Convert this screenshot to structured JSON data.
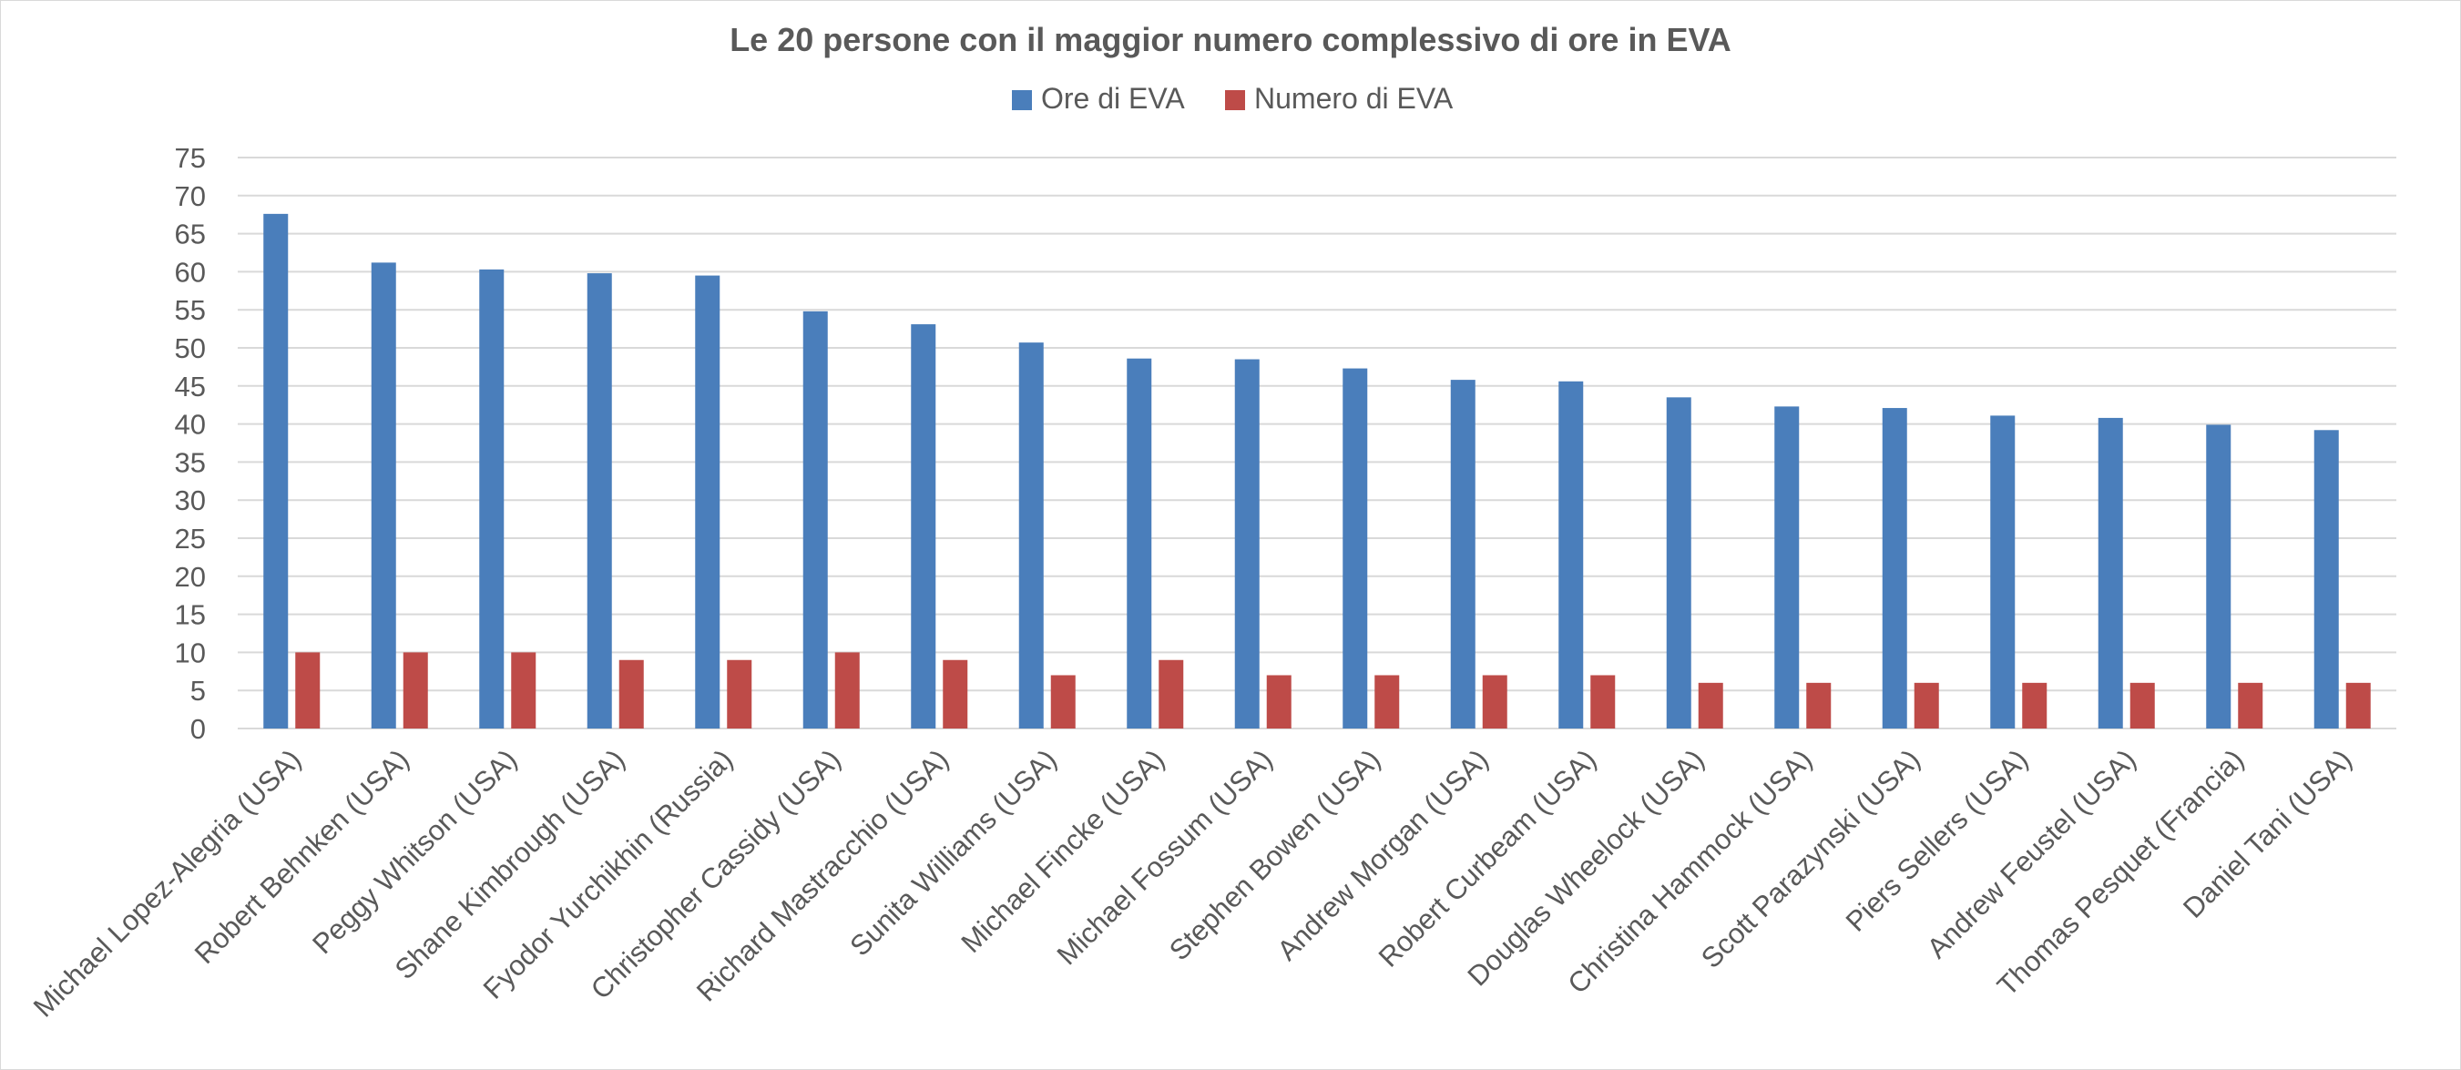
{
  "chart_data": {
    "type": "bar",
    "title": "Le 20 persone con il maggior numero complessivo di ore in EVA",
    "xlabel": "",
    "ylabel": "",
    "ylim": [
      0,
      75
    ],
    "yticks": [
      0,
      5,
      10,
      15,
      20,
      25,
      30,
      35,
      40,
      45,
      50,
      55,
      60,
      65,
      70,
      75
    ],
    "grid": true,
    "legend_position": "top",
    "categories": [
      "Michael Lopez-Alegria (USA)",
      "Robert Behnken (USA)",
      "Peggy Whitson (USA)",
      "Shane Kimbrough  (USA)",
      "Fyodor Yurchikhin (Russia)",
      "Christopher Cassidy (USA)",
      "Richard Mastracchio (USA)",
      "Sunita Williams (USA)",
      "Michael Fincke (USA)",
      "Michael Fossum (USA)",
      "Stephen Bowen (USA)",
      "Andrew Morgan (USA)",
      "Robert Curbeam (USA)",
      "Douglas Wheelock  (USA)",
      "Christina Hammock (USA)",
      "Scott Parazynski (USA)",
      "Piers Sellers (USA)",
      "Andrew Feustel (USA)",
      "Thomas Pesquet (Francia)",
      "Daniel Tani (USA)"
    ],
    "series": [
      {
        "name": "Ore di EVA",
        "color": "#4a7ebb",
        "values": [
          67.6,
          61.2,
          60.3,
          59.8,
          59.5,
          54.8,
          53.1,
          50.7,
          48.6,
          48.5,
          47.3,
          45.8,
          45.6,
          43.5,
          42.3,
          42.1,
          41.1,
          40.8,
          39.9,
          39.2
        ]
      },
      {
        "name": "Numero di EVA",
        "color": "#be4b48",
        "values": [
          10,
          10,
          10,
          9,
          9,
          10,
          9,
          7,
          9,
          7,
          7,
          7,
          7,
          6,
          6,
          6,
          6,
          6,
          6,
          6
        ]
      }
    ]
  }
}
